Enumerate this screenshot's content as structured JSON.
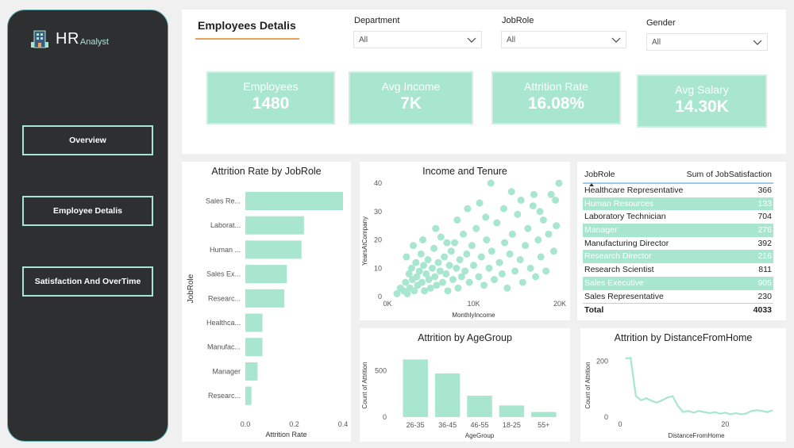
{
  "sidebar": {
    "logo_main": "HR",
    "logo_sub": "Analyst",
    "nav": [
      "Overview",
      "Employee Detalis",
      "Satisfaction And OverTime"
    ]
  },
  "header": {
    "title": "Employees Detalis",
    "filters": [
      {
        "label": "Department",
        "value": "All"
      },
      {
        "label": "JobRole",
        "value": "All"
      },
      {
        "label": "Gender",
        "value": "All"
      }
    ],
    "kpis": [
      {
        "label": "Employees",
        "value": "1480"
      },
      {
        "label": "Avg Income",
        "value": "7K"
      },
      {
        "label": "Attrition Rate",
        "value": "16.08%"
      },
      {
        "label": "Avg Salary",
        "value": "14.30K"
      }
    ]
  },
  "colors": {
    "accent": "#a8e6cf",
    "sidebar": "#2d2f30",
    "underline": "#e8a25a"
  },
  "table": {
    "col1": "JobRole",
    "col2": "Sum of JobSatisfaction",
    "rows": [
      {
        "role": "Healthcare Representative",
        "value": "366"
      },
      {
        "role": "Human Resources",
        "value": "133"
      },
      {
        "role": "Laboratory Technician",
        "value": "704"
      },
      {
        "role": "Manager",
        "value": "276"
      },
      {
        "role": "Manufacturing Director",
        "value": "392"
      },
      {
        "role": "Research Director",
        "value": "216"
      },
      {
        "role": "Research Scientist",
        "value": "811"
      },
      {
        "role": "Sales Executive",
        "value": "905"
      },
      {
        "role": "Sales Representative",
        "value": "230"
      }
    ],
    "total_label": "Total",
    "total_value": "4033"
  },
  "chart_data": [
    {
      "type": "bar",
      "title": "Attrition Rate by JobRole",
      "orientation": "horizontal",
      "categories": [
        "Sales Re...",
        "Laborat...",
        "Human ...",
        "Sales Ex...",
        "Researc...",
        "Healthca...",
        "Manufac...",
        "Manager",
        "Researc..."
      ],
      "values": [
        0.4,
        0.24,
        0.23,
        0.17,
        0.16,
        0.07,
        0.07,
        0.05,
        0.025
      ],
      "xlabel": "Attrition Rate",
      "ylabel": "JobRole",
      "xticks": [
        "0.0",
        "0.2",
        "0.4"
      ],
      "xlim": [
        0,
        0.4
      ]
    },
    {
      "type": "scatter",
      "title": "Income and Tenure",
      "xlabel": "MonthlyIncome",
      "ylabel": "YearsAtCompany",
      "xticks": [
        "0K",
        "10K",
        "20K"
      ],
      "yticks": [
        "0",
        "10",
        "20",
        "30",
        "40"
      ],
      "xlim": [
        0,
        20000
      ],
      "ylim": [
        0,
        40
      ],
      "points": [
        [
          1100,
          1
        ],
        [
          1500,
          3
        ],
        [
          1900,
          2
        ],
        [
          2100,
          5
        ],
        [
          2300,
          1
        ],
        [
          2500,
          8
        ],
        [
          2600,
          3
        ],
        [
          2800,
          10
        ],
        [
          2900,
          6
        ],
        [
          3100,
          2
        ],
        [
          3300,
          12
        ],
        [
          3400,
          7
        ],
        [
          3500,
          4
        ],
        [
          3700,
          9
        ],
        [
          3900,
          15
        ],
        [
          4000,
          5
        ],
        [
          4200,
          11
        ],
        [
          4300,
          2
        ],
        [
          4500,
          8
        ],
        [
          4700,
          13
        ],
        [
          4800,
          6
        ],
        [
          5000,
          3
        ],
        [
          5200,
          10
        ],
        [
          5400,
          17
        ],
        [
          5500,
          7
        ],
        [
          5700,
          4
        ],
        [
          5900,
          12
        ],
        [
          6100,
          9
        ],
        [
          6200,
          21
        ],
        [
          6400,
          5
        ],
        [
          6600,
          14
        ],
        [
          6800,
          8
        ],
        [
          7000,
          2
        ],
        [
          7200,
          11
        ],
        [
          7400,
          16
        ],
        [
          7600,
          6
        ],
        [
          7800,
          19
        ],
        [
          8000,
          10
        ],
        [
          8200,
          3
        ],
        [
          8400,
          13
        ],
        [
          8600,
          7
        ],
        [
          8800,
          22
        ],
        [
          9000,
          9
        ],
        [
          9200,
          15
        ],
        [
          9500,
          5
        ],
        [
          9800,
          18
        ],
        [
          10000,
          11
        ],
        [
          10300,
          24
        ],
        [
          10600,
          7
        ],
        [
          10900,
          14
        ],
        [
          11200,
          4
        ],
        [
          11500,
          20
        ],
        [
          11800,
          10
        ],
        [
          12100,
          16
        ],
        [
          12400,
          6
        ],
        [
          12700,
          26
        ],
        [
          13000,
          12
        ],
        [
          13300,
          8
        ],
        [
          13600,
          19
        ],
        [
          13900,
          3
        ],
        [
          14200,
          15
        ],
        [
          14500,
          22
        ],
        [
          14800,
          9
        ],
        [
          15100,
          29
        ],
        [
          15400,
          13
        ],
        [
          15700,
          5
        ],
        [
          16000,
          18
        ],
        [
          16300,
          24
        ],
        [
          16600,
          10
        ],
        [
          16900,
          32
        ],
        [
          17200,
          7
        ],
        [
          17500,
          20
        ],
        [
          17800,
          14
        ],
        [
          18100,
          27
        ],
        [
          18400,
          9
        ],
        [
          18700,
          22
        ],
        [
          19000,
          36
        ],
        [
          19300,
          16
        ],
        [
          19600,
          25
        ],
        [
          19900,
          40
        ],
        [
          12000,
          40
        ],
        [
          14400,
          37
        ],
        [
          17000,
          36
        ],
        [
          19500,
          34
        ],
        [
          2200,
          14
        ],
        [
          3000,
          18
        ],
        [
          4100,
          20
        ],
        [
          5600,
          24
        ],
        [
          6900,
          19
        ],
        [
          8100,
          27
        ],
        [
          9300,
          31
        ],
        [
          10700,
          33
        ],
        [
          11400,
          28
        ],
        [
          13500,
          31
        ],
        [
          15500,
          34
        ],
        [
          17700,
          30
        ]
      ]
    },
    {
      "type": "table",
      "columns": [
        "JobRole",
        "Sum of JobSatisfaction"
      ],
      "rows": [
        [
          "Healthcare Representative",
          366
        ],
        [
          "Human Resources",
          133
        ],
        [
          "Laboratory Technician",
          704
        ],
        [
          "Manager",
          276
        ],
        [
          "Manufacturing Director",
          392
        ],
        [
          "Research Director",
          216
        ],
        [
          "Research Scientist",
          811
        ],
        [
          "Sales Executive",
          905
        ],
        [
          "Sales Representative",
          230
        ]
      ],
      "total": 4033
    },
    {
      "type": "bar",
      "title": "Attrition by AgeGroup",
      "categories": [
        "26-35",
        "36-45",
        "46-55",
        "18-25",
        "55+"
      ],
      "values": [
        620,
        470,
        230,
        125,
        55
      ],
      "xlabel": "AgeGroup",
      "ylabel": "Count of Attrition",
      "yticks": [
        "0",
        "500"
      ],
      "ylim": [
        0,
        700
      ]
    },
    {
      "type": "line",
      "title": "Attrition by DistanceFromHome",
      "xlabel": "DistanceFromHome",
      "ylabel": "Count of Attrition",
      "xticks": [
        "0",
        "20"
      ],
      "yticks": [
        "0",
        "200"
      ],
      "xlim": [
        0,
        29
      ],
      "ylim": [
        0,
        230
      ],
      "x": [
        1,
        2,
        3,
        4,
        5,
        6,
        7,
        8,
        9,
        10,
        11,
        12,
        13,
        14,
        15,
        16,
        17,
        18,
        19,
        20,
        21,
        22,
        23,
        24,
        25,
        26,
        27,
        28,
        29
      ],
      "y": [
        210,
        212,
        75,
        60,
        68,
        58,
        52,
        60,
        70,
        75,
        40,
        18,
        22,
        16,
        22,
        18,
        14,
        18,
        12,
        16,
        10,
        14,
        10,
        13,
        22,
        25,
        22,
        18,
        24
      ]
    }
  ]
}
